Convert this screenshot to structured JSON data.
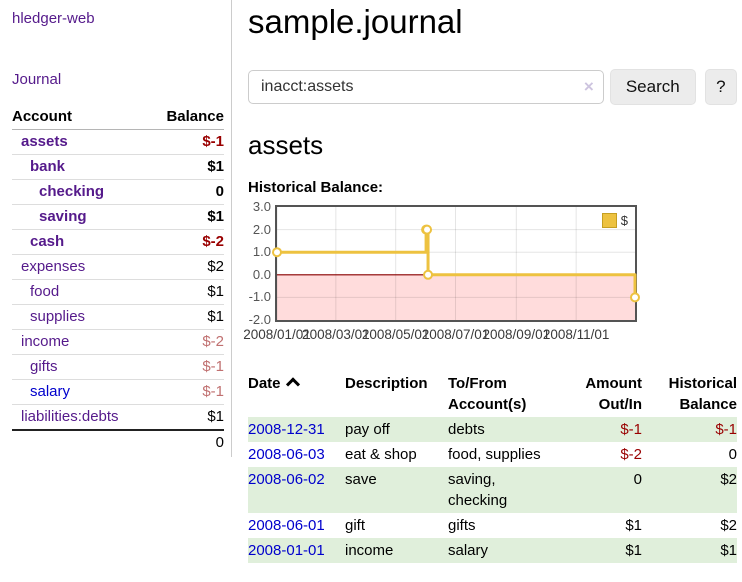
{
  "colors": {
    "purple": "#551a8b",
    "blue": "#0000cc",
    "neg_strong": "#990000",
    "neg_muted": "#c07070",
    "row_green": "#e0efdb",
    "gold": "#edc240"
  },
  "app": {
    "brand": "hledger-web",
    "nav_journal": "Journal"
  },
  "sidebar": {
    "header": {
      "account": "Account",
      "balance": "Balance"
    },
    "accounts": [
      {
        "name": "assets",
        "balance": "$-1",
        "indent": 1,
        "bold": true,
        "link": "purple",
        "balance_class": "neg-strong"
      },
      {
        "name": "bank",
        "balance": "$1",
        "indent": 2,
        "bold": true,
        "link": "purple",
        "balance_class": ""
      },
      {
        "name": "checking",
        "balance": "0",
        "indent": 3,
        "bold": true,
        "link": "purple",
        "balance_class": ""
      },
      {
        "name": "saving",
        "balance": "$1",
        "indent": 3,
        "bold": true,
        "link": "purple",
        "balance_class": ""
      },
      {
        "name": "cash",
        "balance": "$-2",
        "indent": 2,
        "bold": true,
        "link": "purple",
        "balance_class": "neg-strong"
      },
      {
        "name": "expenses",
        "balance": "$2",
        "indent": 1,
        "bold": false,
        "link": "purple",
        "balance_class": ""
      },
      {
        "name": "food",
        "balance": "$1",
        "indent": 2,
        "bold": false,
        "link": "purple",
        "balance_class": ""
      },
      {
        "name": "supplies",
        "balance": "$1",
        "indent": 2,
        "bold": false,
        "link": "purple",
        "balance_class": ""
      },
      {
        "name": "income",
        "balance": "$-2",
        "indent": 1,
        "bold": false,
        "link": "purple",
        "balance_class": "neg-muted"
      },
      {
        "name": "gifts",
        "balance": "$-1",
        "indent": 2,
        "bold": false,
        "link": "purple",
        "balance_class": "neg-muted"
      },
      {
        "name": "salary",
        "balance": "$-1",
        "indent": 2,
        "bold": false,
        "link": "blue",
        "balance_class": "neg-muted"
      },
      {
        "name": "liabilities:debts",
        "balance": "$1",
        "indent": 1,
        "bold": false,
        "link": "purple",
        "balance_class": ""
      }
    ],
    "total": "0"
  },
  "main": {
    "title": "sample.journal",
    "search": {
      "value": "inacct:assets",
      "clear_icon": "×",
      "search_button": "Search",
      "help_button": "?"
    },
    "account_heading": "assets",
    "chart_label": "Historical Balance:"
  },
  "chart_data": {
    "type": "line",
    "title": "Historical Balance:",
    "step": true,
    "series": [
      {
        "name": "$",
        "color": "#edc240",
        "points": [
          {
            "date": "2008-01-01",
            "value": 1
          },
          {
            "date": "2008-06-01",
            "value": 2
          },
          {
            "date": "2008-06-02",
            "value": 2
          },
          {
            "date": "2008-06-03",
            "value": 0
          },
          {
            "date": "2008-12-31",
            "value": -1
          }
        ]
      }
    ],
    "x_range": [
      "2008-01-01",
      "2008-12-31"
    ],
    "xticks": [
      {
        "date": "2008-01-01",
        "label": "2008/01/01"
      },
      {
        "date": "2008-03-01",
        "label": "2008/03/01"
      },
      {
        "date": "2008-05-01",
        "label": "2008/05/01"
      },
      {
        "date": "2008-07-01",
        "label": "2008/07/01"
      },
      {
        "date": "2008-09-01",
        "label": "2008/09/01"
      },
      {
        "date": "2008-11-01",
        "label": "2008/11/01"
      }
    ],
    "ylim": [
      -2.0,
      3.0
    ],
    "yticks": [
      {
        "value": 3,
        "label": "3.0"
      },
      {
        "value": 2,
        "label": "2.0"
      },
      {
        "value": 1,
        "label": "1.0"
      },
      {
        "value": 0,
        "label": "0.0"
      },
      {
        "value": -1,
        "label": "-1.0"
      },
      {
        "value": -2,
        "label": "-2.0"
      }
    ],
    "grid": true,
    "negative_region_fill": "#ffdcdc",
    "zero_line_color": "#8b0000",
    "legend": {
      "position": "top-right",
      "label": "$"
    }
  },
  "register": {
    "headers": [
      "Date",
      "Description",
      "To/From Account(s)",
      "Amount Out/In",
      "Historical Balance"
    ],
    "rows": [
      {
        "date": "2008-12-31",
        "description": "pay off",
        "accounts": "debts",
        "amount": "$-1",
        "amount_class": "neg-strong",
        "balance": "$-1",
        "balance_class": "neg-strong",
        "striped": true
      },
      {
        "date": "2008-06-03",
        "description": "eat & shop",
        "accounts": "food, supplies",
        "amount": "$-2",
        "amount_class": "neg-strong",
        "balance": "0",
        "balance_class": "",
        "striped": false
      },
      {
        "date": "2008-06-02",
        "description": "save",
        "accounts": "saving, checking",
        "amount": "0",
        "amount_class": "",
        "balance": "$2",
        "balance_class": "",
        "striped": true
      },
      {
        "date": "2008-06-01",
        "description": "gift",
        "accounts": "gifts",
        "amount": "$1",
        "amount_class": "",
        "balance": "$2",
        "balance_class": "",
        "striped": false
      },
      {
        "date": "2008-01-01",
        "description": "income",
        "accounts": "salary",
        "amount": "$1",
        "amount_class": "",
        "balance": "$1",
        "balance_class": "",
        "striped": true
      }
    ]
  }
}
